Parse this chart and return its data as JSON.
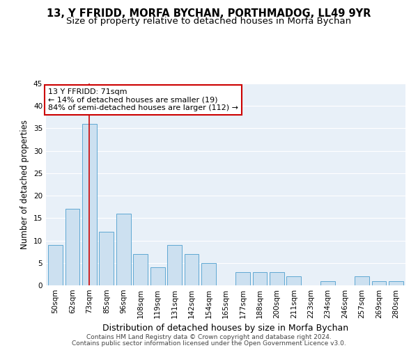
{
  "title": "13, Y FFRIDD, MORFA BYCHAN, PORTHMADOG, LL49 9YR",
  "subtitle": "Size of property relative to detached houses in Morfa Bychan",
  "xlabel": "Distribution of detached houses by size in Morfa Bychan",
  "ylabel": "Number of detached properties",
  "categories": [
    "50sqm",
    "62sqm",
    "73sqm",
    "85sqm",
    "96sqm",
    "108sqm",
    "119sqm",
    "131sqm",
    "142sqm",
    "154sqm",
    "165sqm",
    "177sqm",
    "188sqm",
    "200sqm",
    "211sqm",
    "223sqm",
    "234sqm",
    "246sqm",
    "257sqm",
    "269sqm",
    "280sqm"
  ],
  "values": [
    9,
    17,
    36,
    12,
    16,
    7,
    4,
    9,
    7,
    5,
    0,
    3,
    3,
    3,
    2,
    0,
    1,
    0,
    2,
    1,
    1
  ],
  "bar_color": "#cce0f0",
  "bar_edge_color": "#5fa8d3",
  "highlight_bar_index": 2,
  "highlight_line_color": "#cc0000",
  "annotation_text": "13 Y FFRIDD: 71sqm\n← 14% of detached houses are smaller (19)\n84% of semi-detached houses are larger (112) →",
  "annotation_box_color": "#ffffff",
  "annotation_box_edge": "#cc0000",
  "ylim": [
    0,
    45
  ],
  "yticks": [
    0,
    5,
    10,
    15,
    20,
    25,
    30,
    35,
    40,
    45
  ],
  "background_color": "#e8f0f8",
  "grid_color": "#ffffff",
  "footer_line1": "Contains HM Land Registry data © Crown copyright and database right 2024.",
  "footer_line2": "Contains public sector information licensed under the Open Government Licence v3.0.",
  "title_fontsize": 10.5,
  "subtitle_fontsize": 9.5,
  "xlabel_fontsize": 9,
  "ylabel_fontsize": 8.5,
  "tick_fontsize": 7.5,
  "footer_fontsize": 6.5,
  "annotation_fontsize": 8
}
